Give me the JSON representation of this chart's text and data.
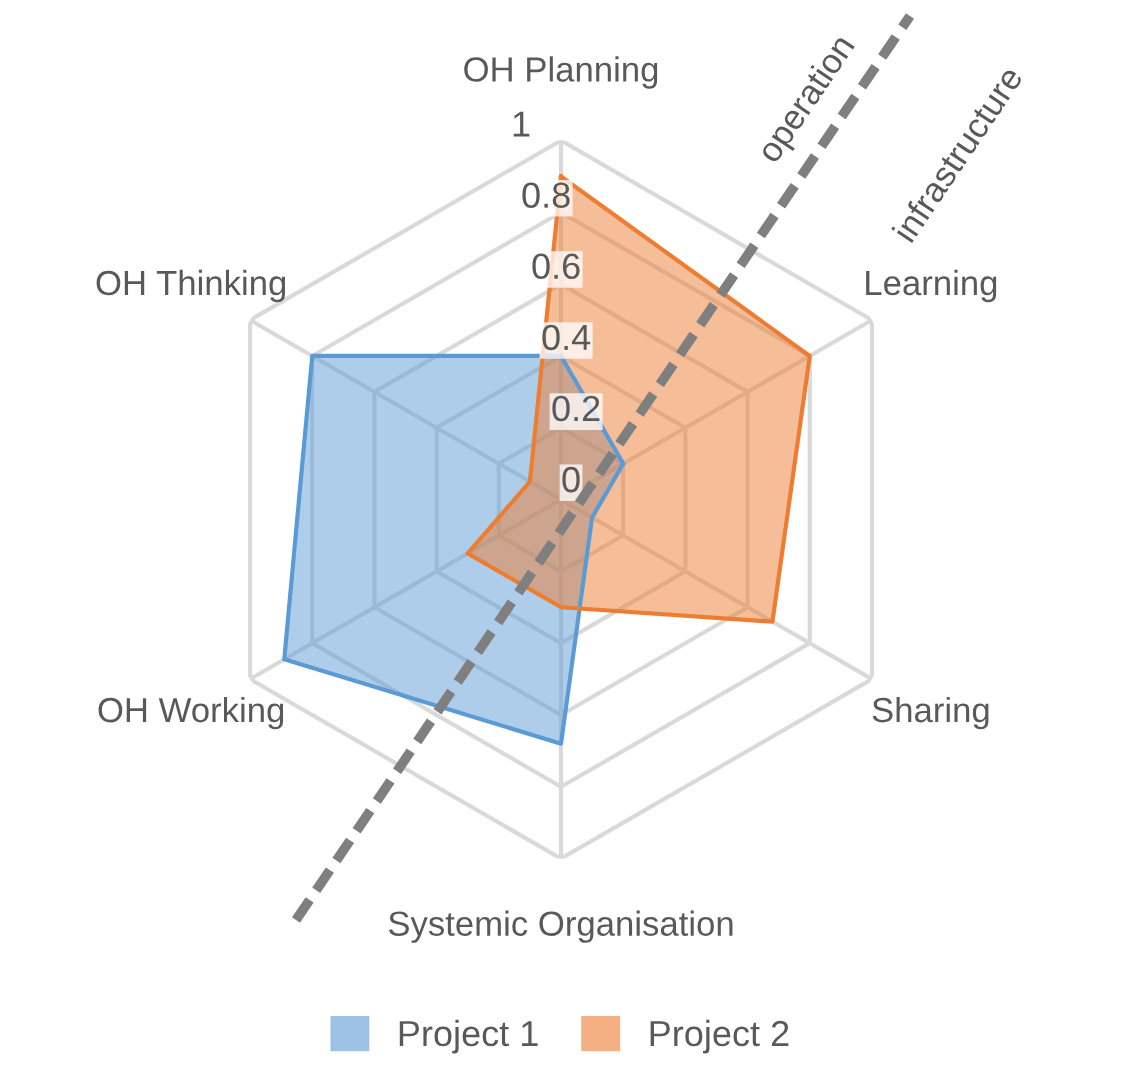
{
  "chart_data": {
    "type": "radar",
    "categories": [
      "OH Planning",
      "Learning",
      "Sharing",
      "Systemic Organisation",
      "OH Working",
      "OH Thinking"
    ],
    "series": [
      {
        "name": "Project 1",
        "color": "#5b9bd5",
        "values": [
          0.4,
          0.2,
          0.1,
          0.68,
          0.89,
          0.8
        ]
      },
      {
        "name": "Project 2",
        "color": "#ed7d31",
        "values": [
          0.9,
          0.8,
          0.68,
          0.3,
          0.3,
          0.1
        ]
      }
    ],
    "ylim": [
      0,
      1
    ],
    "yticks": [
      0,
      0.2,
      0.4,
      0.6,
      0.8,
      1
    ],
    "grid": true,
    "legend": "bottom",
    "annotations": [
      "operation",
      "infrastructure"
    ]
  }
}
